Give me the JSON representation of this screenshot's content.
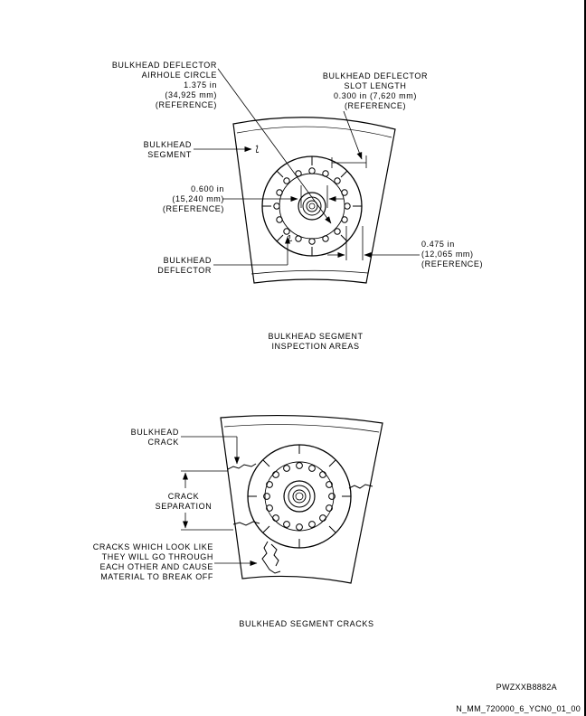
{
  "figure_top": {
    "callouts": {
      "airhole_circle": [
        "BULKHEAD DEFLECTOR",
        "AIRHOLE CIRCLE",
        "1.375 in",
        "(34,925 mm)",
        "(REFERENCE)"
      ],
      "slot_length": [
        "BULKHEAD DEFLECTOR",
        "SLOT LENGTH",
        "0.300 in (7,620 mm)",
        "(REFERENCE)"
      ],
      "bulkhead_segment": [
        "BULKHEAD",
        "SEGMENT"
      ],
      "dim_0600": [
        "0.600 in",
        "(15,240 mm)",
        "(REFERENCE)"
      ],
      "bulkhead_deflector": [
        "BULKHEAD",
        "DEFLECTOR"
      ],
      "dim_0475": [
        "0.475 in",
        "(12,065 mm)",
        "(REFERENCE)"
      ]
    },
    "caption": [
      "BULKHEAD SEGMENT",
      "INSPECTION AREAS"
    ]
  },
  "figure_bottom": {
    "callouts": {
      "bulkhead_crack": [
        "BULKHEAD",
        "CRACK"
      ],
      "crack_separation": [
        "CRACK",
        "SEPARATION"
      ],
      "cracks_break_off": [
        "CRACKS WHICH LOOK LIKE",
        "THEY WILL GO THROUGH",
        "EACH OTHER AND CAUSE",
        "MATERIAL TO BREAK OFF"
      ]
    },
    "caption": "BULKHEAD SEGMENT CRACKS"
  },
  "figure_id": "PWZXXB8882A",
  "doc_ref": "N_MM_720000_6_YCN0_01_00"
}
